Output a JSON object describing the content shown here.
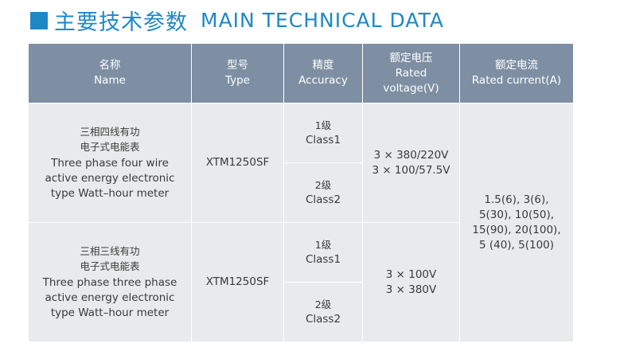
{
  "heading": {
    "zh": "主要技术参数",
    "en": "MAIN TECHNICAL DATA"
  },
  "table": {
    "headers": [
      {
        "zh": "名称",
        "en": "Name"
      },
      {
        "zh": "型号",
        "en": "Type"
      },
      {
        "zh": "精度",
        "en": "Accuracy"
      },
      {
        "zh": "额定电压",
        "en": "Rated voltage(V)"
      },
      {
        "zh": "额定电流",
        "en": "Rated current(A)"
      }
    ],
    "groups": [
      {
        "name_zh": [
          "三相四线有功",
          "电子式电能表"
        ],
        "name_en": [
          "Three phase four wire",
          "active energy electronic",
          "type Watt–hour meter"
        ],
        "type": "XTM1250SF",
        "classes": [
          {
            "zh": "1级",
            "en": "Class1"
          },
          {
            "zh": "2级",
            "en": "Class2"
          }
        ],
        "voltage": [
          "3 × 380/220V",
          "3 × 100/57.5V"
        ]
      },
      {
        "name_zh": [
          "三相三线有功",
          "电子式电能表"
        ],
        "name_en": [
          "Three phase three phase",
          "active energy electronic",
          "type Watt–hour meter"
        ],
        "type": "XTM1250SF",
        "classes": [
          {
            "zh": "1级",
            "en": "Class1"
          },
          {
            "zh": "2级",
            "en": "Class2"
          }
        ],
        "voltage": [
          "3 × 100V",
          "3 × 380V"
        ]
      }
    ],
    "current": [
      "1.5(6), 3(6),",
      "5(30), 10(50),",
      "15(90), 20(100),",
      "5 (40), 5(100)"
    ]
  },
  "colors": {
    "accent": "#1e88c7",
    "header_bg": "#7e8fa3",
    "cell_bg": "#e9eaeb"
  }
}
